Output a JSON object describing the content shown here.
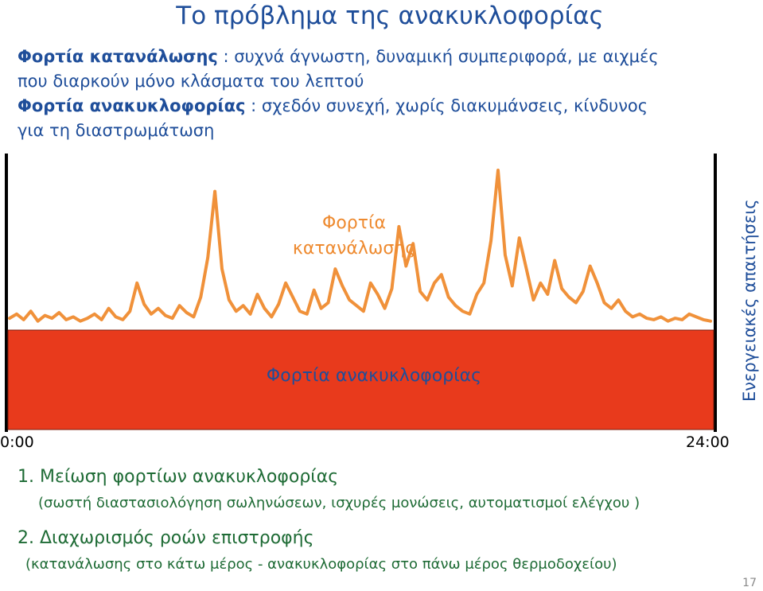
{
  "title": "Το πρόβλημα της ανακυκλοφορίας",
  "intro": {
    "consumption_term": "Φορτία κατανάλωσης",
    "consumption_text": " :  συχνά άγνωστη, δυναμική συμπεριφορά,  με αιχμές",
    "consumption_text2": "που διαρκούν μόνο κλάσματα του λεπτού",
    "recirc_term": "Φορτία ανακυκλοφορίας",
    "recirc_text": " : σχεδόν συνεχή,  χωρίς διακυμάνσεις, κίνδυνος",
    "recirc_text2": "για τη διαστρωμάτωση"
  },
  "chart": {
    "consumption_label_l1": "Φορτία",
    "consumption_label_l2": "κατανάλωσης",
    "recirc_label": "Φορτία ανακυκλοφορίας",
    "side_label": "Ενεργειακές  απαιτήσεις",
    "x_start": "0:00",
    "x_end": "24:00",
    "colors": {
      "consumption": "#f0913a",
      "recirculation": "#e83a1c",
      "frame": "#000000",
      "text_blue": "#1f4e9a",
      "text_green": "#1e6b35"
    }
  },
  "chart_data": {
    "type": "area",
    "x_range": [
      "0:00",
      "24:00"
    ],
    "series": [
      {
        "name": "Φορτία ανακυκλοφορίας",
        "level": 0.0
      },
      {
        "name": "Φορτία κατανάλωσης"
      }
    ],
    "consumption_values": [
      5,
      8,
      4,
      10,
      3,
      7,
      5,
      9,
      4,
      6,
      3,
      5,
      8,
      4,
      12,
      6,
      4,
      10,
      30,
      15,
      8,
      12,
      7,
      5,
      14,
      9,
      6,
      20,
      48,
      95,
      40,
      18,
      10,
      14,
      8,
      22,
      12,
      6,
      15,
      30,
      20,
      10,
      8,
      25,
      12,
      16,
      40,
      28,
      18,
      14,
      10,
      30,
      22,
      12,
      26,
      70,
      42,
      58,
      24,
      18,
      30,
      36,
      20,
      14,
      10,
      8,
      22,
      30,
      60,
      110,
      50,
      28,
      62,
      40,
      18,
      30,
      22,
      46,
      26,
      20,
      16,
      24,
      42,
      30,
      16,
      12,
      18,
      10,
      6,
      8,
      5,
      4,
      6,
      3,
      5,
      4,
      8,
      6,
      4,
      3
    ]
  },
  "steps": {
    "step1_title": "1. Μείωση φορτίων ανακυκλοφορίας",
    "step1_desc": "(σωστή διαστασιολόγηση σωληνώσεων, ισχυρές μονώσεις, αυτοματισμοί ελέγχου )",
    "step2_title": "2. Διαχωρισμός ροών επιστροφής",
    "step2_desc": "(κατανάλωσης στο κάτω μέρος - ανακυκλοφορίας στο πάνω μέρος θερμοδοχείου)"
  },
  "page_number": "17"
}
